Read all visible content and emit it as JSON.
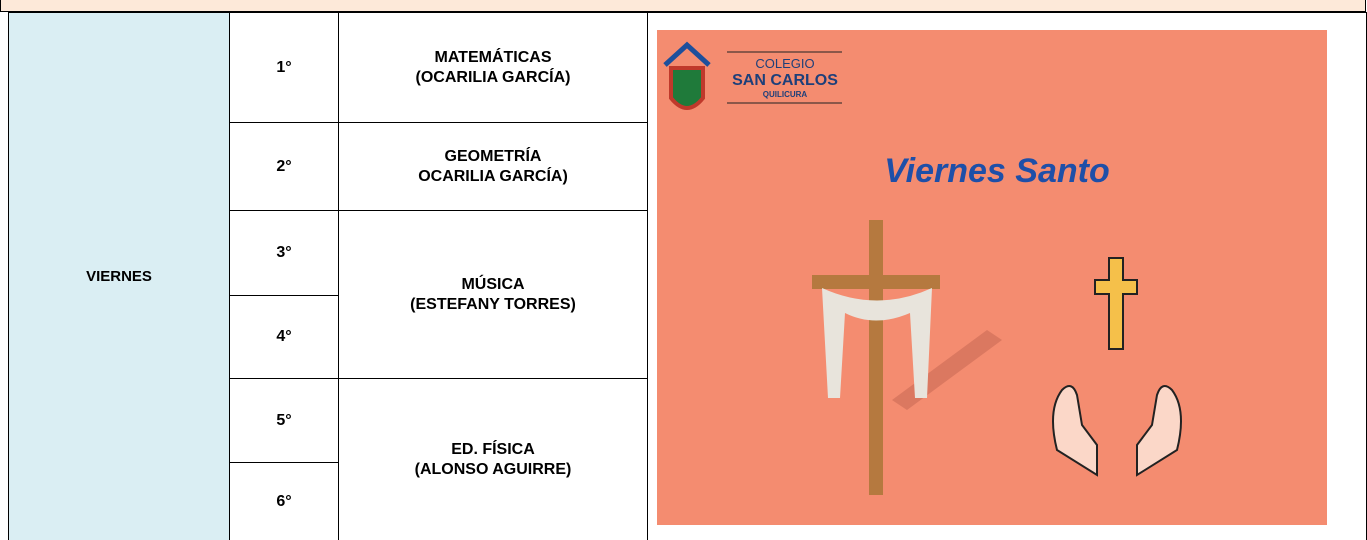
{
  "table": {
    "day": "VIERNES",
    "periods": [
      "1°",
      "2°",
      "3°",
      "4°",
      "5°",
      "6°"
    ],
    "subjects": [
      {
        "name": "MATEMÁTICAS",
        "teacher": "(OCARILIA GARCÍA)"
      },
      {
        "name": "GEOMETRÍA",
        "teacher": "OCARILIA GARCÍA)"
      },
      {
        "name": "MÚSICA",
        "teacher": "(ESTEFANY TORRES)"
      },
      {
        "name": "ED. FÍSICA",
        "teacher": "(ALONSO AGUIRRE)"
      }
    ]
  },
  "image": {
    "school_label": "COLEGIO",
    "school_name": "SAN CARLOS",
    "school_city": "QUILICURA",
    "title": "Viernes Santo"
  }
}
